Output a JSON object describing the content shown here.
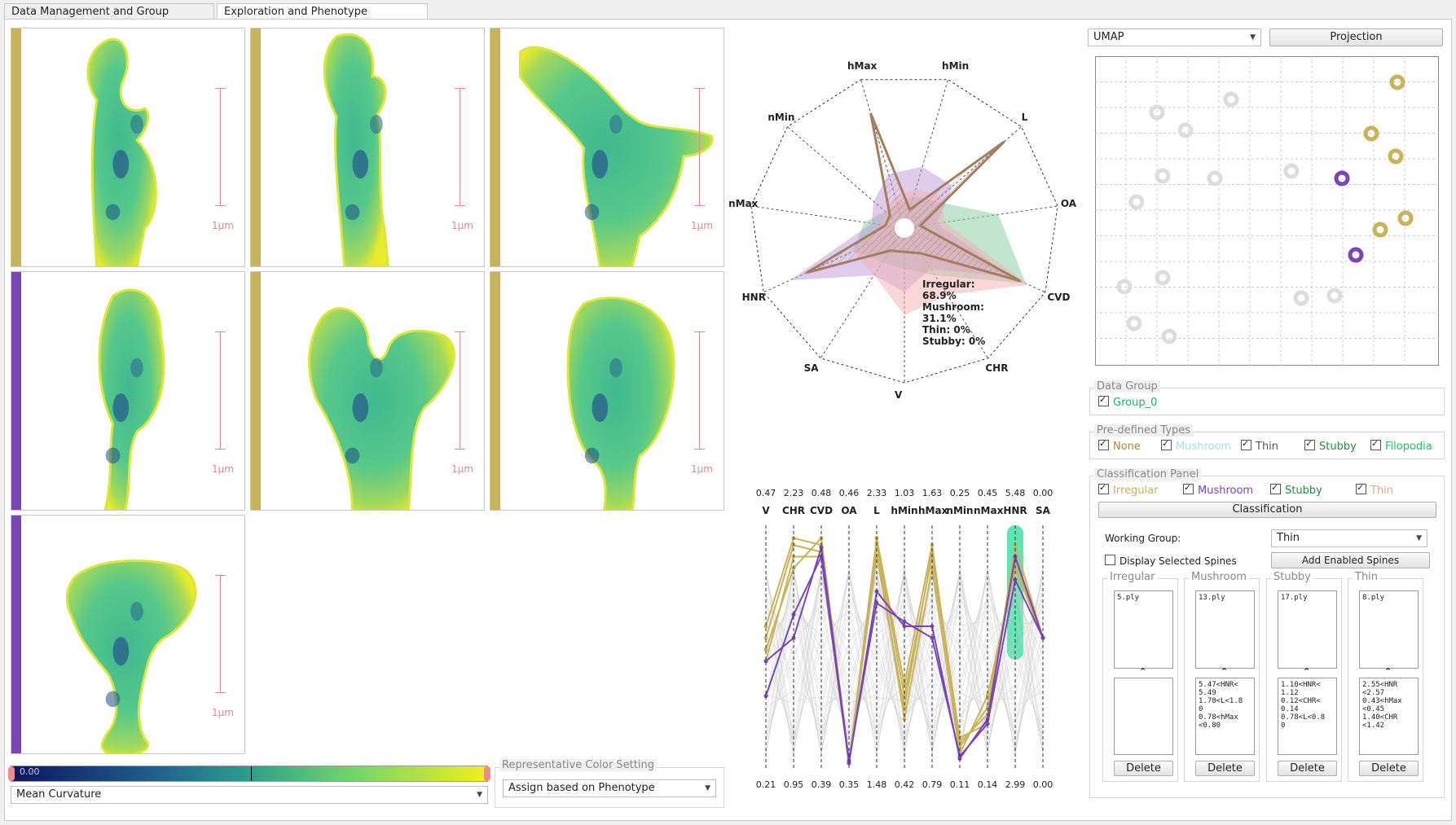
{
  "tabs": [
    {
      "label": "Data Management and Group Comparison"
    },
    {
      "label": "Exploration and Phenotype Classification"
    }
  ],
  "colors": {
    "irregular": "#c8b35a",
    "mushroom": "#7a45b5",
    "thin": "#e0a890",
    "stubby": "#8fcfa8",
    "group": "#1bb36a",
    "filopodia": "#20c060",
    "highlight": "#35e0a0"
  },
  "viewer": {
    "scale_label": "1μm",
    "cells": [
      {
        "phenotype": "irregular"
      },
      {
        "phenotype": "irregular"
      },
      {
        "phenotype": "irregular"
      },
      {
        "phenotype": "mushroom"
      },
      {
        "phenotype": "irregular"
      },
      {
        "phenotype": "irregular"
      },
      {
        "phenotype": "mushroom"
      }
    ],
    "colormap_min": "0.00",
    "metric_select": "Mean Curvature",
    "rep_color_title": "Representative Color Setting",
    "rep_color_select": "Assign based on Phenotype"
  },
  "radar": {
    "axes": [
      "hMax",
      "hMin",
      "L",
      "OA",
      "CVD",
      "CHR",
      "V",
      "SA",
      "HNR",
      "nMax",
      "nMin"
    ],
    "tooltip": [
      "Irregular:",
      "68.9%",
      "Mushroom:",
      "31.1%",
      "Thin: 0%",
      "Stubby: 0%"
    ]
  },
  "pcp": {
    "axes": [
      "V",
      "CHR",
      "CVD",
      "OA",
      "L",
      "hMin",
      "hMax",
      "nMin",
      "nMax",
      "HNR",
      "SA"
    ],
    "top": [
      "0.47",
      "2.23",
      "0.48",
      "0.46",
      "2.33",
      "1.03",
      "1.63",
      "0.25",
      "0.45",
      "5.48",
      "0.00"
    ],
    "bottom": [
      "0.21",
      "0.95",
      "0.39",
      "0.35",
      "1.48",
      "0.42",
      "0.79",
      "0.11",
      "0.14",
      "2.99",
      "0.00"
    ]
  },
  "projection": {
    "method": "UMAP",
    "button": "Projection"
  },
  "data_group": {
    "title": "Data Group",
    "items": [
      {
        "label": "Group_0",
        "checked": true
      }
    ]
  },
  "predefined": {
    "title": "Pre-defined Types",
    "items": [
      {
        "label": "None",
        "checked": true
      },
      {
        "label": "Mushroom",
        "checked": true
      },
      {
        "label": "Thin",
        "checked": true
      },
      {
        "label": "Stubby",
        "checked": true
      },
      {
        "label": "Filopodia",
        "checked": true
      }
    ]
  },
  "classification": {
    "title": "Classification Panel",
    "items": [
      {
        "label": "Irregular",
        "checked": true
      },
      {
        "label": "Mushroom",
        "checked": true
      },
      {
        "label": "Stubby",
        "checked": true
      },
      {
        "label": "Thin",
        "checked": true
      }
    ],
    "button": "Classification",
    "working_group_label": "Working Group:",
    "working_group": "Thin",
    "display_selected": "Display Selected Spines",
    "add_enabled": "Add Enabled Spines",
    "groups": [
      {
        "title": "Irregular",
        "file": "5.ply",
        "rules": "",
        "delete": "Delete"
      },
      {
        "title": "Mushroom",
        "file": "13.ply",
        "rules": "5.47<HNR<\n5.49\n1.78<L<1.8\n0\n0.78<hMax\n<0.80",
        "delete": "Delete"
      },
      {
        "title": "Stubby",
        "file": "17.ply",
        "rules": "1.10<HNR<\n1.12\n0.12<CHR<\n0.14\n0.78<L<0.8\n0",
        "delete": "Delete"
      },
      {
        "title": "Thin",
        "file": "8.ply",
        "rules": "2.55<HNR\n<2.57\n0.43<hMax\n<0.45\n1.40<CHR\n<1.42",
        "delete": "Delete"
      }
    ]
  }
}
